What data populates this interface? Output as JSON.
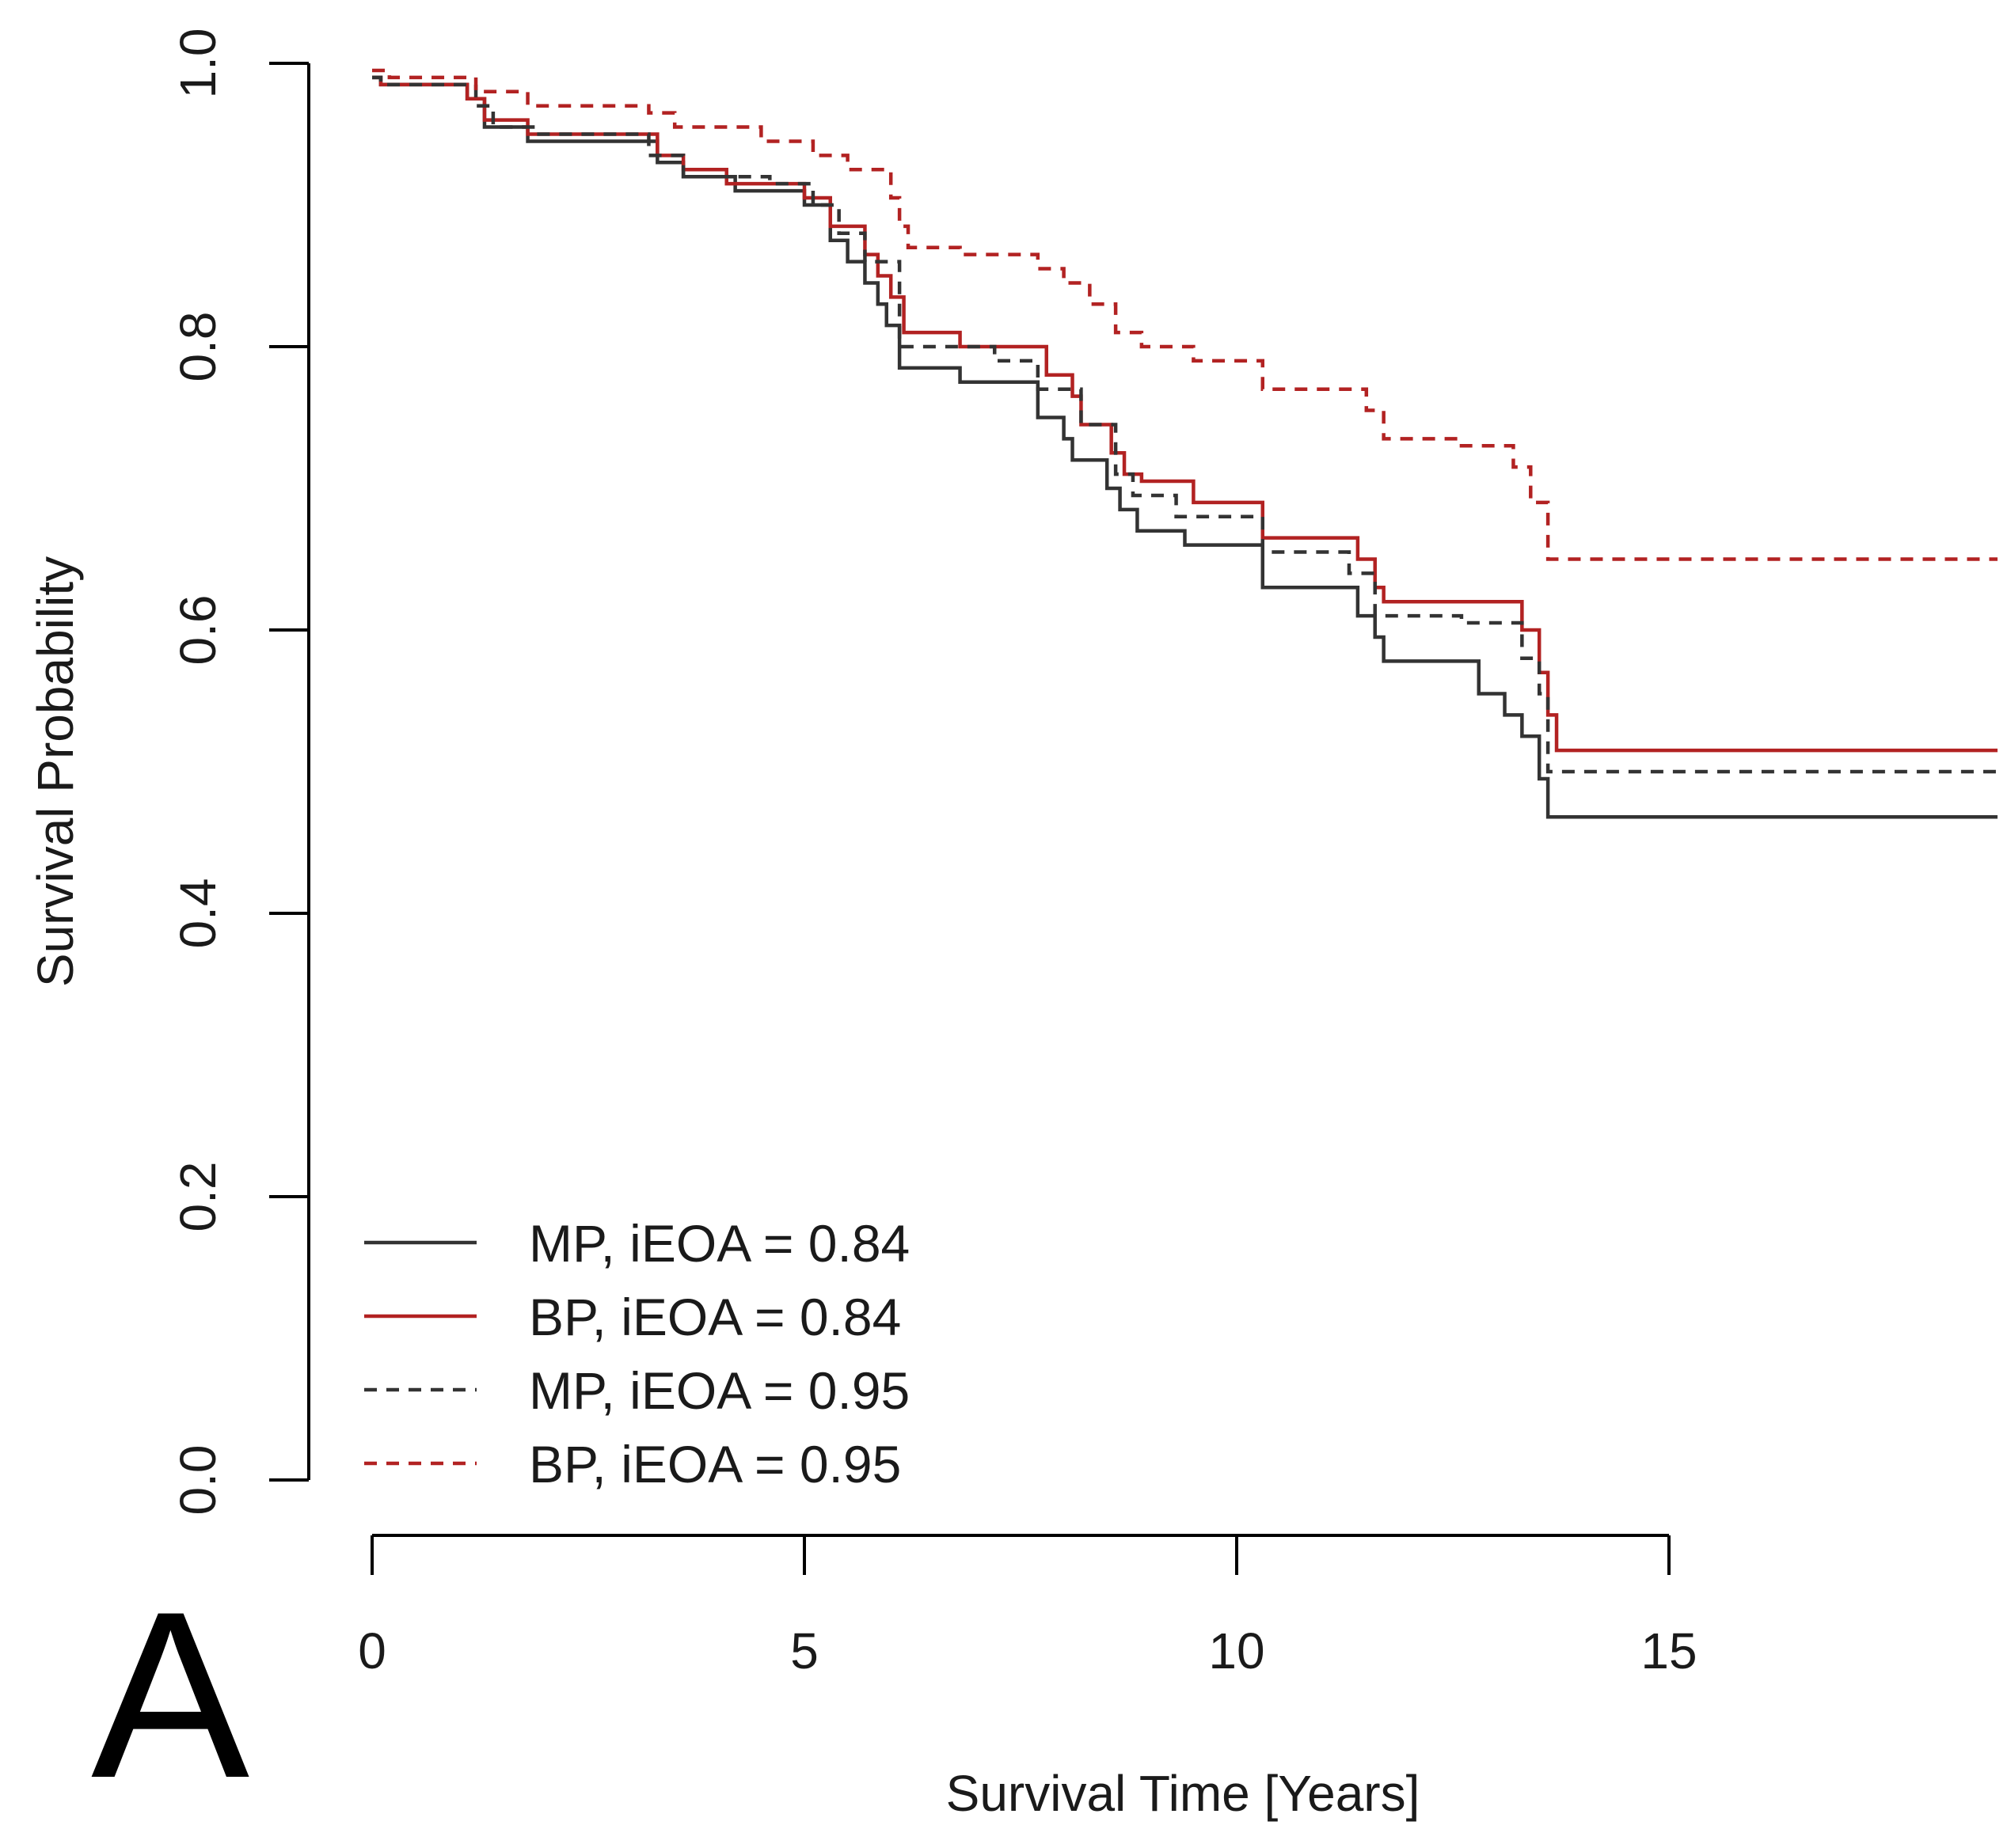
{
  "chart_data": {
    "type": "line",
    "title": "",
    "xlabel": "Survival Time [Years]",
    "ylabel": "Survival Probability",
    "xlim": [
      0,
      18.8
    ],
    "ylim": [
      0,
      1
    ],
    "x_ticks": [
      "0",
      "5",
      "10",
      "15"
    ],
    "y_ticks": [
      "0.0",
      "0.2",
      "0.4",
      "0.6",
      "0.8",
      "1.0"
    ],
    "panel_label": "A",
    "legend_position": "bottom-left",
    "series": [
      {
        "name": "MP, iEOA = 0.84",
        "color": "#333333",
        "dash": "solid",
        "steps": [
          [
            0,
            0.99
          ],
          [
            0.1,
            0.985
          ],
          [
            1.1,
            0.975
          ],
          [
            1.3,
            0.955
          ],
          [
            1.8,
            0.945
          ],
          [
            3.3,
            0.93
          ],
          [
            3.6,
            0.92
          ],
          [
            4.2,
            0.91
          ],
          [
            5,
            0.9
          ],
          [
            5.3,
            0.875
          ],
          [
            5.5,
            0.86
          ],
          [
            5.7,
            0.845
          ],
          [
            5.85,
            0.83
          ],
          [
            5.95,
            0.815
          ],
          [
            6.1,
            0.785
          ],
          [
            6.8,
            0.775
          ],
          [
            7.7,
            0.75
          ],
          [
            8.0,
            0.735
          ],
          [
            8.1,
            0.72
          ],
          [
            8.5,
            0.7
          ],
          [
            8.65,
            0.685
          ],
          [
            8.85,
            0.67
          ],
          [
            9.4,
            0.66
          ],
          [
            10.3,
            0.63
          ],
          [
            11.4,
            0.61
          ],
          [
            11.6,
            0.595
          ],
          [
            11.7,
            0.578
          ],
          [
            12.8,
            0.555
          ],
          [
            13.1,
            0.54
          ],
          [
            13.3,
            0.525
          ],
          [
            13.5,
            0.495
          ],
          [
            13.6,
            0.468
          ],
          [
            18.8,
            0.468
          ]
        ]
      },
      {
        "name": "BP, iEOA = 0.84",
        "color": "#b22222",
        "dash": "solid",
        "steps": [
          [
            0,
            0.99
          ],
          [
            0.1,
            0.985
          ],
          [
            1.1,
            0.975
          ],
          [
            1.3,
            0.96
          ],
          [
            1.8,
            0.95
          ],
          [
            3.3,
            0.935
          ],
          [
            3.6,
            0.925
          ],
          [
            4.1,
            0.915
          ],
          [
            5.0,
            0.905
          ],
          [
            5.3,
            0.885
          ],
          [
            5.7,
            0.865
          ],
          [
            5.85,
            0.85
          ],
          [
            6.0,
            0.835
          ],
          [
            6.15,
            0.81
          ],
          [
            6.8,
            0.8
          ],
          [
            7.8,
            0.78
          ],
          [
            8.1,
            0.765
          ],
          [
            8.2,
            0.745
          ],
          [
            8.55,
            0.725
          ],
          [
            8.7,
            0.71
          ],
          [
            8.9,
            0.705
          ],
          [
            9.5,
            0.69
          ],
          [
            10.3,
            0.665
          ],
          [
            11.4,
            0.65
          ],
          [
            11.6,
            0.63
          ],
          [
            11.7,
            0.62
          ],
          [
            13.3,
            0.6
          ],
          [
            13.5,
            0.57
          ],
          [
            13.6,
            0.54
          ],
          [
            13.7,
            0.515
          ],
          [
            18.8,
            0.515
          ]
        ]
      },
      {
        "name": "MP, iEOA = 0.95",
        "color": "#333333",
        "dash": "dashed",
        "steps": [
          [
            0,
            0.99
          ],
          [
            0.1,
            0.985
          ],
          [
            1.2,
            0.97
          ],
          [
            1.4,
            0.955
          ],
          [
            1.9,
            0.95
          ],
          [
            3.2,
            0.935
          ],
          [
            3.6,
            0.92
          ],
          [
            4.6,
            0.915
          ],
          [
            5.1,
            0.9
          ],
          [
            5.4,
            0.88
          ],
          [
            5.7,
            0.86
          ],
          [
            6.1,
            0.8
          ],
          [
            7.2,
            0.79
          ],
          [
            7.7,
            0.77
          ],
          [
            8.2,
            0.745
          ],
          [
            8.6,
            0.71
          ],
          [
            8.8,
            0.695
          ],
          [
            9.3,
            0.68
          ],
          [
            10.3,
            0.655
          ],
          [
            11.3,
            0.64
          ],
          [
            11.6,
            0.61
          ],
          [
            12.6,
            0.605
          ],
          [
            13.3,
            0.58
          ],
          [
            13.5,
            0.555
          ],
          [
            13.6,
            0.5
          ],
          [
            18.8,
            0.5
          ]
        ]
      },
      {
        "name": "BP, iEOA = 0.95",
        "color": "#b22222",
        "dash": "dashed",
        "steps": [
          [
            0,
            0.995
          ],
          [
            0.2,
            0.99
          ],
          [
            1.2,
            0.98
          ],
          [
            1.8,
            0.97
          ],
          [
            3.2,
            0.965
          ],
          [
            3.5,
            0.955
          ],
          [
            4.5,
            0.945
          ],
          [
            5.1,
            0.935
          ],
          [
            5.5,
            0.925
          ],
          [
            6,
            0.905
          ],
          [
            6.1,
            0.885
          ],
          [
            6.2,
            0.87
          ],
          [
            6.8,
            0.865
          ],
          [
            7.7,
            0.855
          ],
          [
            8.0,
            0.845
          ],
          [
            8.3,
            0.83
          ],
          [
            8.6,
            0.81
          ],
          [
            8.9,
            0.8
          ],
          [
            9.5,
            0.79
          ],
          [
            10.3,
            0.77
          ],
          [
            11.5,
            0.755
          ],
          [
            11.7,
            0.735
          ],
          [
            12.6,
            0.73
          ],
          [
            13.2,
            0.715
          ],
          [
            13.4,
            0.69
          ],
          [
            13.6,
            0.65
          ],
          [
            18.8,
            0.65
          ]
        ]
      }
    ]
  }
}
